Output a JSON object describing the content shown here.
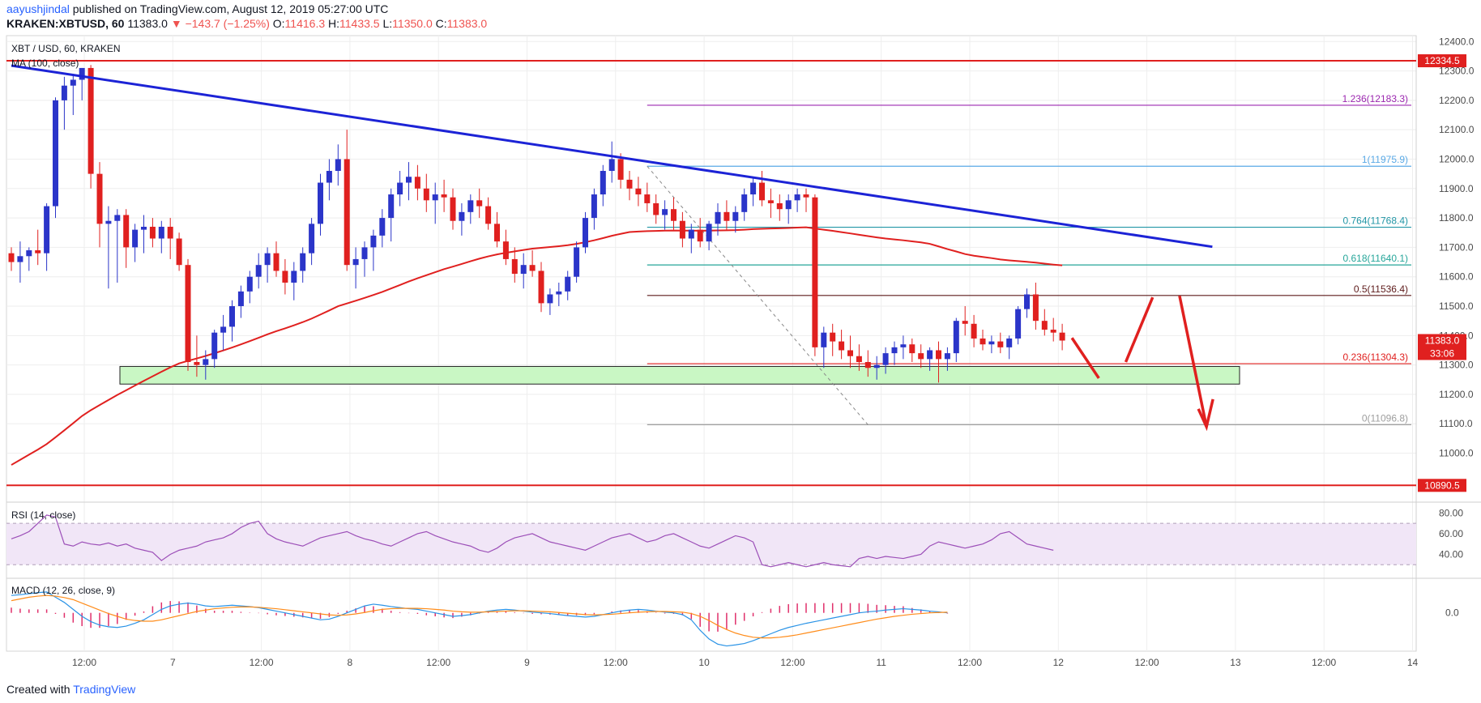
{
  "header": {
    "user": "aayushjindal",
    "published": "published on TradingView.com, August 12, 2019 05:27:00 UTC",
    "symbol": "KRAKEN:XBTUSD, 60",
    "last": "11383.0",
    "change": "▼ −143.7 (−1.25%)",
    "o_label": "O:",
    "o_val": "11416.3",
    "h_label": "H:",
    "h_val": "11433.5",
    "l_label": "L:",
    "l_val": "11350.0",
    "c_label": "C:",
    "c_val": "11383.0"
  },
  "pane_labels": {
    "main": "XBT / USD, 60, KRAKEN",
    "ma": "MA (100, close)",
    "rsi": "RSI (14, close)",
    "macd": "MACD (12, 26, close, 9)"
  },
  "footer": {
    "created": "Created with",
    "brand": "TradingView"
  },
  "colors": {
    "up": "#2b35c9",
    "down": "#e0201f",
    "ma": "#e0201f",
    "trendline": "#1c23d6",
    "support_fill": "#c9f7c4",
    "rsi": "#9c4fb8",
    "rsi_band": "#f1e6f7",
    "macd": "#2a93e6",
    "signal": "#ff8c1a",
    "hist": "#e0306b"
  },
  "chart_data": {
    "type": "candlestick",
    "ylim": [
      10850,
      12420
    ],
    "x_axis": {
      "labels": [
        "12:00",
        "7",
        "12:00",
        "8",
        "12:00",
        "9",
        "12:00",
        "10",
        "12:00",
        "11",
        "12:00",
        "12",
        "12:00",
        "13",
        "12:00",
        "14"
      ]
    },
    "y_axis": {
      "ticks": [
        12400,
        12300,
        12200,
        12100,
        12000,
        11900,
        11800,
        11700,
        11600,
        11500,
        11400,
        11300,
        11200,
        11100,
        11000
      ],
      "tick_labels": [
        "12400.0",
        "12300.0",
        "12200.0",
        "12100.0",
        "12000.0",
        "11900.0",
        "11800.0",
        "11700.0",
        "11600.0",
        "11500.0",
        "11400.0",
        "11300.0",
        "11200.0",
        "11100.0",
        "11000.0"
      ]
    },
    "horizontal_levels": [
      {
        "value": 12334.5,
        "label": "12334.5"
      },
      {
        "value": 10890.5,
        "label": "10890.5"
      }
    ],
    "price_tag": {
      "value": 11383.0,
      "label": "11383.0",
      "countdown": "33:06"
    },
    "fib_levels": [
      {
        "ratio": "1.236",
        "value": 12183.3,
        "label": "1.236(12183.3)",
        "color": "#9c27b0"
      },
      {
        "ratio": "1",
        "value": 11975.9,
        "label": "1(11975.9)",
        "color": "#5aa9e6"
      },
      {
        "ratio": "0.764",
        "value": 11768.4,
        "label": "0.764(11768.4)",
        "color": "#2196a6"
      },
      {
        "ratio": "0.618",
        "value": 11640.1,
        "label": "0.618(11640.1)",
        "color": "#26a69a"
      },
      {
        "ratio": "0.5",
        "value": 11536.4,
        "label": "0.5(11536.4)",
        "color": "#5d1a1a"
      },
      {
        "ratio": "0.236",
        "value": 11304.3,
        "label": "0.236(11304.3)",
        "color": "#e0201f"
      },
      {
        "ratio": "0",
        "value": 11096.8,
        "label": "0(11096.8)",
        "color": "#9e9e9e"
      }
    ],
    "support_zone": [
      11235,
      11295
    ],
    "trendline": [
      [
        0,
        12318
      ],
      [
        136,
        11702
      ]
    ],
    "projection_path": [
      [
        -1,
        11392
      ],
      [
        2,
        11255
      ],
      [
        5,
        11310
      ],
      [
        8,
        11530
      ],
      [
        11,
        11535
      ],
      [
        14,
        11090
      ]
    ],
    "fib_anchor_line": [
      [
        72,
        11975.9
      ],
      [
        97,
        11096.8
      ]
    ],
    "candles": [
      [
        11680,
        11700,
        11620,
        11650
      ],
      [
        11650,
        11720,
        11580,
        11670
      ],
      [
        11670,
        11700,
        11620,
        11690
      ],
      [
        11690,
        11760,
        11640,
        11680
      ],
      [
        11680,
        11850,
        11620,
        11840
      ],
      [
        11840,
        12210,
        11800,
        12200
      ],
      [
        12200,
        12280,
        12100,
        12250
      ],
      [
        12250,
        12290,
        12150,
        12270
      ],
      [
        12270,
        12310,
        12200,
        12310
      ],
      [
        12310,
        12320,
        11900,
        11950
      ],
      [
        11950,
        11990,
        11700,
        11780
      ],
      [
        11780,
        11840,
        11560,
        11790
      ],
      [
        11790,
        11830,
        11580,
        11810
      ],
      [
        11810,
        11830,
        11630,
        11700
      ],
      [
        11700,
        11780,
        11650,
        11760
      ],
      [
        11760,
        11810,
        11680,
        11770
      ],
      [
        11770,
        11800,
        11700,
        11730
      ],
      [
        11730,
        11790,
        11680,
        11770
      ],
      [
        11770,
        11800,
        11660,
        11730
      ],
      [
        11730,
        11750,
        11620,
        11640
      ],
      [
        11640,
        11660,
        11280,
        11310
      ],
      [
        11310,
        11400,
        11260,
        11300
      ],
      [
        11300,
        11350,
        11250,
        11320
      ],
      [
        11320,
        11420,
        11290,
        11410
      ],
      [
        11410,
        11470,
        11350,
        11430
      ],
      [
        11430,
        11520,
        11380,
        11500
      ],
      [
        11500,
        11570,
        11460,
        11550
      ],
      [
        11550,
        11620,
        11510,
        11600
      ],
      [
        11600,
        11680,
        11560,
        11640
      ],
      [
        11640,
        11700,
        11580,
        11680
      ],
      [
        11680,
        11720,
        11600,
        11620
      ],
      [
        11620,
        11660,
        11540,
        11580
      ],
      [
        11580,
        11650,
        11520,
        11620
      ],
      [
        11620,
        11700,
        11580,
        11680
      ],
      [
        11680,
        11800,
        11640,
        11780
      ],
      [
        11780,
        11950,
        11740,
        11920
      ],
      [
        11920,
        12000,
        11860,
        11960
      ],
      [
        11960,
        12050,
        11910,
        12000
      ],
      [
        12000,
        12100,
        11620,
        11640
      ],
      [
        11640,
        11700,
        11560,
        11660
      ],
      [
        11660,
        11720,
        11600,
        11700
      ],
      [
        11700,
        11760,
        11620,
        11740
      ],
      [
        11740,
        11830,
        11700,
        11800
      ],
      [
        11800,
        11900,
        11720,
        11880
      ],
      [
        11880,
        11960,
        11840,
        11920
      ],
      [
        11920,
        11990,
        11860,
        11940
      ],
      [
        11940,
        11980,
        11860,
        11900
      ],
      [
        11900,
        11950,
        11820,
        11860
      ],
      [
        11860,
        11920,
        11780,
        11880
      ],
      [
        11880,
        11930,
        11820,
        11870
      ],
      [
        11870,
        11900,
        11760,
        11790
      ],
      [
        11790,
        11850,
        11740,
        11820
      ],
      [
        11820,
        11880,
        11780,
        11860
      ],
      [
        11860,
        11900,
        11800,
        11840
      ],
      [
        11840,
        11870,
        11760,
        11780
      ],
      [
        11780,
        11820,
        11700,
        11720
      ],
      [
        11720,
        11760,
        11640,
        11660
      ],
      [
        11660,
        11700,
        11580,
        11610
      ],
      [
        11610,
        11680,
        11560,
        11640
      ],
      [
        11640,
        11690,
        11600,
        11620
      ],
      [
        11620,
        11650,
        11480,
        11510
      ],
      [
        11510,
        11560,
        11470,
        11540
      ],
      [
        11540,
        11580,
        11500,
        11550
      ],
      [
        11550,
        11620,
        11520,
        11600
      ],
      [
        11600,
        11720,
        11580,
        11700
      ],
      [
        11700,
        11820,
        11680,
        11800
      ],
      [
        11800,
        11900,
        11760,
        11880
      ],
      [
        11880,
        11980,
        11840,
        11960
      ],
      [
        11960,
        12060,
        11920,
        12000
      ],
      [
        12000,
        12020,
        11900,
        11930
      ],
      [
        11930,
        11960,
        11860,
        11900
      ],
      [
        11900,
        11940,
        11840,
        11880
      ],
      [
        11880,
        11920,
        11820,
        11850
      ],
      [
        11850,
        11880,
        11780,
        11810
      ],
      [
        11810,
        11860,
        11760,
        11830
      ],
      [
        11830,
        11870,
        11760,
        11790
      ],
      [
        11790,
        11820,
        11700,
        11730
      ],
      [
        11730,
        11780,
        11680,
        11760
      ],
      [
        11760,
        11800,
        11700,
        11720
      ],
      [
        11720,
        11790,
        11690,
        11780
      ],
      [
        11780,
        11850,
        11740,
        11820
      ],
      [
        11820,
        11860,
        11760,
        11790
      ],
      [
        11790,
        11840,
        11750,
        11820
      ],
      [
        11820,
        11900,
        11790,
        11880
      ],
      [
        11880,
        11940,
        11840,
        11920
      ],
      [
        11920,
        11960,
        11840,
        11860
      ],
      [
        11860,
        11900,
        11800,
        11850
      ],
      [
        11850,
        11880,
        11790,
        11830
      ],
      [
        11830,
        11880,
        11780,
        11860
      ],
      [
        11860,
        11900,
        11820,
        11880
      ],
      [
        11880,
        11900,
        11820,
        11870
      ],
      [
        11870,
        11880,
        11330,
        11360
      ],
      [
        11360,
        11430,
        11290,
        11410
      ],
      [
        11410,
        11440,
        11330,
        11380
      ],
      [
        11380,
        11420,
        11320,
        11350
      ],
      [
        11350,
        11400,
        11290,
        11330
      ],
      [
        11330,
        11370,
        11280,
        11310
      ],
      [
        11310,
        11350,
        11260,
        11290
      ],
      [
        11290,
        11330,
        11250,
        11300
      ],
      [
        11300,
        11360,
        11270,
        11340
      ],
      [
        11340,
        11380,
        11300,
        11360
      ],
      [
        11360,
        11400,
        11320,
        11370
      ],
      [
        11370,
        11390,
        11310,
        11340
      ],
      [
        11340,
        11370,
        11290,
        11320
      ],
      [
        11320,
        11360,
        11280,
        11350
      ],
      [
        11350,
        11380,
        11240,
        11320
      ],
      [
        11320,
        11360,
        11280,
        11340
      ],
      [
        11340,
        11460,
        11310,
        11450
      ],
      [
        11450,
        11500,
        11400,
        11440
      ],
      [
        11440,
        11470,
        11360,
        11390
      ],
      [
        11390,
        11420,
        11350,
        11370
      ],
      [
        11370,
        11400,
        11340,
        11380
      ],
      [
        11380,
        11410,
        11340,
        11360
      ],
      [
        11360,
        11400,
        11320,
        11390
      ],
      [
        11390,
        11500,
        11370,
        11490
      ],
      [
        11490,
        11560,
        11460,
        11540
      ],
      [
        11540,
        11580,
        11420,
        11450
      ],
      [
        11450,
        11490,
        11400,
        11420
      ],
      [
        11420,
        11460,
        11380,
        11410
      ],
      [
        11410,
        11440,
        11350,
        11383
      ]
    ],
    "rsi": {
      "ylim": [
        20,
        85
      ],
      "ticks": [
        80,
        60,
        40
      ],
      "tick_labels": [
        "80.00",
        "60.00",
        "40.00"
      ],
      "band": [
        30,
        70
      ],
      "values": [
        55,
        58,
        62,
        70,
        78,
        76,
        50,
        48,
        52,
        50,
        49,
        51,
        48,
        50,
        46,
        44,
        42,
        34,
        40,
        44,
        46,
        48,
        52,
        54,
        56,
        60,
        66,
        70,
        72,
        60,
        55,
        52,
        50,
        48,
        52,
        56,
        58,
        60,
        62,
        58,
        55,
        53,
        50,
        48,
        52,
        56,
        60,
        62,
        58,
        55,
        52,
        50,
        48,
        44,
        42,
        46,
        52,
        56,
        58,
        60,
        56,
        52,
        50,
        48,
        46,
        44,
        48,
        52,
        56,
        58,
        60,
        56,
        52,
        54,
        58,
        60,
        56,
        52,
        48,
        46,
        50,
        54,
        58,
        56,
        52,
        30,
        28,
        30,
        32,
        30,
        28,
        30,
        32,
        30,
        29,
        28,
        36,
        38,
        36,
        38,
        37,
        36,
        38,
        40,
        48,
        52,
        50,
        48,
        46,
        48,
        50,
        54,
        60,
        62,
        56,
        50,
        48,
        46,
        44
      ]
    },
    "macd": {
      "ylim": [
        -110,
        90
      ],
      "ticks": [
        0
      ],
      "tick_labels": [
        "0.0"
      ],
      "macd": [
        50,
        52,
        55,
        58,
        60,
        45,
        30,
        10,
        -10,
        -25,
        -35,
        -40,
        -42,
        -38,
        -30,
        -20,
        -5,
        10,
        20,
        25,
        28,
        25,
        20,
        18,
        20,
        22,
        20,
        18,
        15,
        10,
        5,
        0,
        -5,
        -10,
        -15,
        -20,
        -18,
        -10,
        0,
        10,
        20,
        25,
        22,
        18,
        15,
        12,
        10,
        5,
        0,
        -5,
        -10,
        -8,
        -5,
        0,
        5,
        8,
        10,
        8,
        5,
        2,
        0,
        -2,
        -5,
        -8,
        -10,
        -12,
        -10,
        -5,
        0,
        5,
        8,
        10,
        8,
        5,
        2,
        0,
        -5,
        -20,
        -50,
        -75,
        -90,
        -95,
        -92,
        -88,
        -80,
        -70,
        -60,
        -50,
        -42,
        -36,
        -30,
        -25,
        -20,
        -15,
        -10,
        -5,
        0,
        3,
        5,
        8,
        10,
        12,
        10,
        8,
        5,
        3,
        0
      ],
      "signal": [
        35,
        40,
        45,
        48,
        50,
        48,
        44,
        38,
        28,
        18,
        8,
        -2,
        -10,
        -18,
        -22,
        -24,
        -24,
        -20,
        -14,
        -8,
        -2,
        4,
        8,
        12,
        14,
        16,
        17,
        17,
        16,
        14,
        12,
        9,
        6,
        3,
        0,
        -3,
        -6,
        -7,
        -6,
        -3,
        1,
        6,
        10,
        12,
        13,
        13,
        13,
        12,
        10,
        8,
        5,
        3,
        2,
        2,
        3,
        4,
        5,
        6,
        6,
        5,
        4,
        3,
        1,
        -1,
        -3,
        -5,
        -6,
        -5,
        -4,
        -2,
        0,
        2,
        3,
        4,
        4,
        3,
        2,
        -2,
        -10,
        -22,
        -36,
        -48,
        -58,
        -65,
        -70,
        -72,
        -72,
        -70,
        -67,
        -63,
        -58,
        -53,
        -48,
        -43,
        -38,
        -33,
        -28,
        -23,
        -18,
        -14,
        -10,
        -7,
        -4,
        -2,
        0,
        1,
        2,
        2,
        2
      ]
    }
  }
}
